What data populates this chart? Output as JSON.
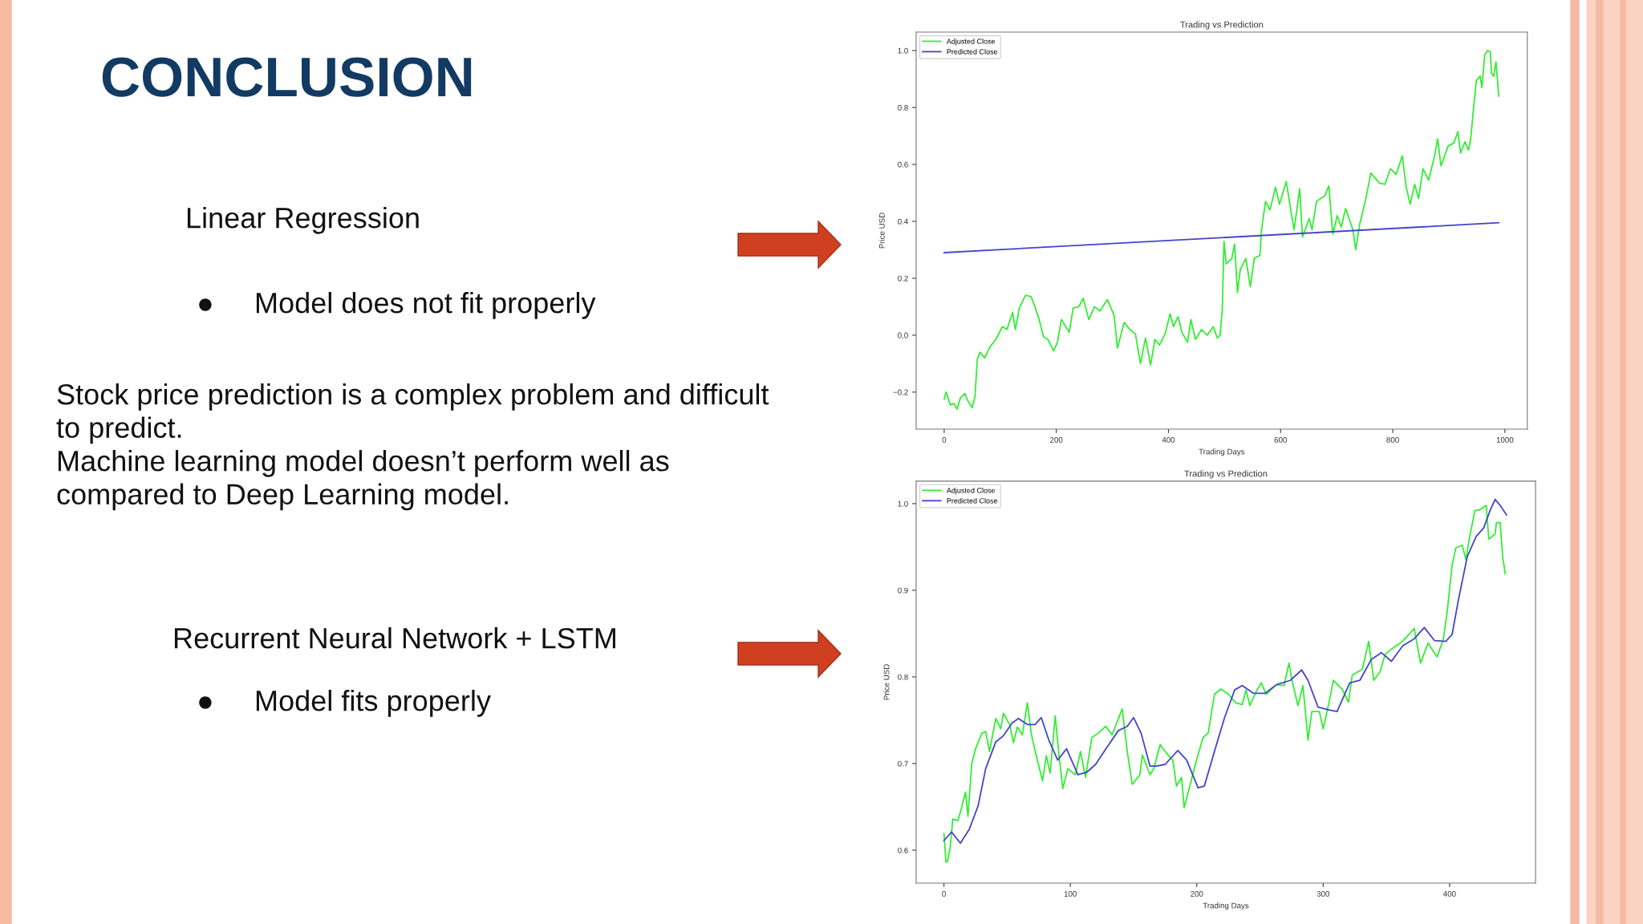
{
  "chart_data": [
    {
      "type": "other",
      "title": "CONCLUSION",
      "annotations": [
        "Linear Regression",
        "●     Model does not fit properly",
        "Stock price prediction is a complex problem and difficult\nto predict.\nMachine learning model doesn’t perform well as\ncompared to Deep Learning model.",
        "Recurrent Neural Network + LSTM",
        "●     Model fits properly"
      ]
    },
    {
      "type": "line",
      "title": "Trading vs Prediction",
      "xlabel": "Trading Days",
      "ylabel": "Price USD",
      "legend": "top left",
      "grid": false,
      "xlim": [
        -50,
        1040
      ],
      "xticks": [
        0,
        200,
        400,
        600,
        800,
        1000
      ],
      "ylim": [
        -0.33,
        1.065
      ],
      "yticks": [
        {
          "value": -0.2,
          "label": "−0.2"
        },
        {
          "value": 0.0,
          "label": "0.0"
        },
        {
          "value": 0.2,
          "label": "0.2"
        },
        {
          "value": 0.4,
          "label": "0.4"
        },
        {
          "value": 0.6,
          "label": "0.6"
        },
        {
          "value": 0.8,
          "label": "0.8"
        },
        {
          "value": 1.0,
          "label": "1.0"
        }
      ],
      "series": [
        {
          "name": "Adjusted Close",
          "color": "#33ee33",
          "x": [
            0,
            3.5,
            11,
            17,
            23,
            29,
            37,
            42,
            50,
            55,
            59,
            64,
            72,
            82,
            92,
            104,
            112,
            122,
            127,
            134,
            145,
            155,
            162,
            170,
            177,
            185,
            195,
            202,
            209,
            223,
            230,
            240,
            248,
            258,
            268,
            278,
            291,
            303,
            309,
            321,
            331,
            341,
            350,
            359,
            368,
            376,
            384,
            394,
            403,
            409,
            417,
            424,
            434,
            440,
            448,
            459,
            469,
            480,
            487,
            492,
            496,
            499,
            503,
            513,
            518,
            523,
            528,
            538,
            546,
            553,
            563,
            566,
            573,
            581,
            591,
            598,
            610,
            619,
            624,
            634,
            639,
            651,
            656,
            664,
            679,
            686,
            693,
            701,
            708,
            716,
            729,
            734,
            741,
            751,
            761,
            776,
            786,
            796,
            806,
            817,
            824,
            831,
            839,
            846,
            854,
            864,
            874,
            880,
            886,
            899,
            909,
            916,
            921,
            929,
            935,
            939,
            944,
            949,
            956,
            959,
            964,
            969,
            974,
            976,
            980,
            984,
            987,
            989
          ],
          "values": [
            -0.225,
            -0.2,
            -0.245,
            -0.24,
            -0.26,
            -0.22,
            -0.205,
            -0.23,
            -0.255,
            -0.215,
            -0.085,
            -0.06,
            -0.08,
            -0.04,
            -0.015,
            0.03,
            0.02,
            0.08,
            0.02,
            0.095,
            0.14,
            0.135,
            0.1,
            0.05,
            -0.005,
            -0.015,
            -0.055,
            -0.025,
            0.055,
            0.01,
            0.095,
            0.1,
            0.13,
            0.055,
            0.1,
            0.085,
            0.125,
            0.07,
            -0.045,
            0.045,
            0.02,
            0.005,
            -0.1,
            -0.01,
            -0.105,
            -0.015,
            -0.035,
            0.005,
            0.075,
            0.03,
            0.065,
            0.01,
            -0.025,
            0.055,
            -0.015,
            0.02,
            0.0,
            0.03,
            -0.01,
            0.0,
            0.09,
            0.33,
            0.25,
            0.27,
            0.32,
            0.15,
            0.23,
            0.27,
            0.17,
            0.27,
            0.28,
            0.37,
            0.47,
            0.44,
            0.52,
            0.46,
            0.54,
            0.43,
            0.37,
            0.515,
            0.345,
            0.41,
            0.37,
            0.47,
            0.49,
            0.525,
            0.355,
            0.42,
            0.38,
            0.445,
            0.37,
            0.3,
            0.39,
            0.47,
            0.57,
            0.535,
            0.53,
            0.585,
            0.565,
            0.63,
            0.52,
            0.46,
            0.53,
            0.48,
            0.585,
            0.545,
            0.625,
            0.69,
            0.595,
            0.665,
            0.675,
            0.715,
            0.64,
            0.68,
            0.65,
            0.69,
            0.795,
            0.895,
            0.91,
            0.87,
            0.985,
            1.0,
            0.995,
            0.92,
            0.91,
            0.96,
            0.89,
            0.84
          ]
        },
        {
          "name": "Predicted Close",
          "color": "#4444cc",
          "x": [
            0,
            989
          ],
          "values": [
            0.29,
            0.395
          ]
        }
      ]
    },
    {
      "type": "line",
      "title": "Trading vs Prediction",
      "xlabel": "Trading Days",
      "ylabel": "Price USD",
      "legend": "top left",
      "grid": false,
      "xlim": [
        -22,
        468
      ],
      "xticks": [
        0,
        100,
        200,
        300,
        400
      ],
      "ylim": [
        0.562,
        1.026
      ],
      "yticks": [
        0.6,
        0.7,
        0.8,
        0.9,
        {
          "value": 1.0,
          "label": "1.0"
        }
      ],
      "series": [
        {
          "name": "Adjusted Close",
          "color": "#33ee33",
          "x": [
            0,
            1.6,
            3,
            5,
            7,
            11,
            14,
            17,
            19,
            22,
            25,
            30,
            33,
            36,
            41,
            45,
            47,
            52,
            55,
            58,
            62,
            66,
            69,
            73,
            78,
            81,
            84,
            88,
            91,
            94,
            98,
            104,
            108,
            112,
            117,
            122,
            128,
            133,
            141,
            145,
            149,
            155,
            157,
            163,
            166,
            171,
            176,
            181,
            184,
            188,
            190,
            195,
            198,
            201,
            205,
            209,
            214,
            219,
            225,
            231,
            236,
            239,
            242,
            247,
            251,
            255,
            263,
            269,
            273,
            275,
            280,
            284,
            288,
            291,
            297,
            300,
            305,
            308,
            315,
            320,
            323,
            331,
            336,
            340,
            345,
            349,
            354,
            361,
            368,
            372,
            377,
            383,
            390,
            395,
            398,
            402,
            405,
            410,
            413,
            415,
            420,
            424,
            429,
            431,
            436,
            437,
            440,
            442,
            444
          ],
          "values": [
            0.619,
            0.586,
            0.588,
            0.604,
            0.636,
            0.634,
            0.649,
            0.667,
            0.639,
            0.7,
            0.717,
            0.735,
            0.737,
            0.714,
            0.752,
            0.74,
            0.758,
            0.745,
            0.724,
            0.742,
            0.733,
            0.77,
            0.735,
            0.709,
            0.68,
            0.709,
            0.689,
            0.755,
            0.71,
            0.671,
            0.694,
            0.687,
            0.714,
            0.684,
            0.73,
            0.735,
            0.743,
            0.733,
            0.763,
            0.714,
            0.676,
            0.687,
            0.71,
            0.687,
            0.694,
            0.722,
            0.712,
            0.704,
            0.674,
            0.684,
            0.649,
            0.677,
            0.694,
            0.71,
            0.73,
            0.735,
            0.78,
            0.786,
            0.78,
            0.77,
            0.768,
            0.785,
            0.767,
            0.783,
            0.793,
            0.78,
            0.791,
            0.79,
            0.816,
            0.798,
            0.767,
            0.79,
            0.727,
            0.76,
            0.76,
            0.74,
            0.773,
            0.796,
            0.786,
            0.771,
            0.802,
            0.809,
            0.841,
            0.796,
            0.806,
            0.826,
            0.832,
            0.839,
            0.849,
            0.856,
            0.816,
            0.839,
            0.823,
            0.843,
            0.874,
            0.929,
            0.949,
            0.952,
            0.935,
            0.955,
            0.992,
            0.993,
            0.998,
            0.959,
            0.965,
            0.978,
            0.978,
            0.939,
            0.919
          ]
        },
        {
          "name": "Predicted Close",
          "color": "#4444cc",
          "x": [
            0,
            6,
            13,
            20,
            27,
            33,
            41,
            47,
            54,
            59,
            66,
            72,
            77,
            83,
            90,
            97,
            106,
            113,
            120,
            129,
            138,
            145,
            150,
            156,
            163,
            168,
            175,
            185,
            192,
            201,
            206,
            214,
            222,
            230,
            236,
            245,
            254,
            263,
            274,
            283,
            288,
            296,
            304,
            311,
            321,
            329,
            338,
            346,
            354,
            363,
            372,
            380,
            388,
            397,
            402,
            407,
            414,
            421,
            427,
            432,
            436,
            440,
            445
          ],
          "values": [
            0.611,
            0.621,
            0.608,
            0.624,
            0.651,
            0.694,
            0.725,
            0.732,
            0.747,
            0.752,
            0.745,
            0.745,
            0.753,
            0.727,
            0.704,
            0.717,
            0.687,
            0.69,
            0.699,
            0.719,
            0.738,
            0.743,
            0.753,
            0.735,
            0.697,
            0.697,
            0.699,
            0.715,
            0.704,
            0.672,
            0.674,
            0.714,
            0.753,
            0.785,
            0.79,
            0.781,
            0.781,
            0.791,
            0.796,
            0.808,
            0.796,
            0.765,
            0.762,
            0.76,
            0.793,
            0.796,
            0.82,
            0.828,
            0.818,
            0.836,
            0.844,
            0.857,
            0.842,
            0.841,
            0.849,
            0.889,
            0.939,
            0.962,
            0.972,
            0.992,
            1.005,
            0.998,
            0.987
          ]
        }
      ]
    }
  ]
}
